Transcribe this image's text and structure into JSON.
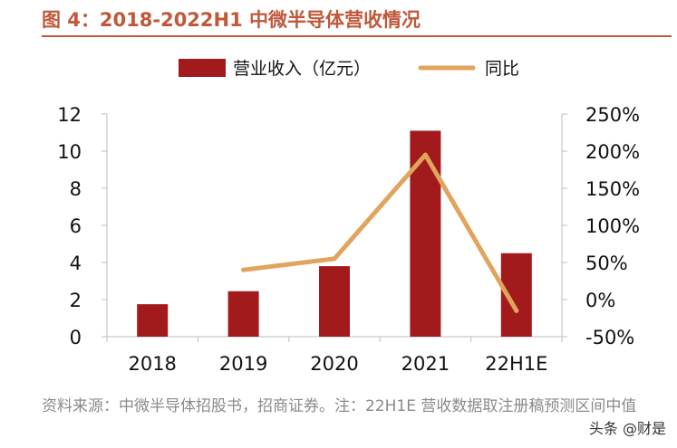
{
  "figure_title": "图 4：2018-2022H1 中微半导体营收情况",
  "source_note": "资料来源：中微半导体招股书，招商证券。注：22H1E 营收数据取注册稿预测区间中值",
  "watermark": "头条 @财是",
  "colors": {
    "bar": "#a31a1c",
    "line": "#e1a45d",
    "axis": "#bdbdbd",
    "text": "#111111",
    "title": "#c0583a"
  },
  "chart_data": {
    "type": "bar",
    "categories": [
      "2018",
      "2019",
      "2020",
      "2021",
      "22H1E"
    ],
    "series": [
      {
        "name": "营业收入（亿元）",
        "type": "bar",
        "axis": "left",
        "values": [
          1.75,
          2.45,
          3.8,
          11.1,
          4.5
        ]
      },
      {
        "name": "同比",
        "type": "line",
        "axis": "right",
        "unit": "%",
        "values": [
          null,
          40,
          55,
          195,
          -15
        ]
      }
    ],
    "y_left": {
      "min": 0,
      "max": 12,
      "ticks": [
        0,
        2,
        4,
        6,
        8,
        10,
        12
      ]
    },
    "y_right": {
      "min": -50,
      "max": 250,
      "ticks": [
        "-50%",
        "0%",
        "50%",
        "100%",
        "150%",
        "200%",
        "250%"
      ]
    },
    "legend": "top-center"
  }
}
